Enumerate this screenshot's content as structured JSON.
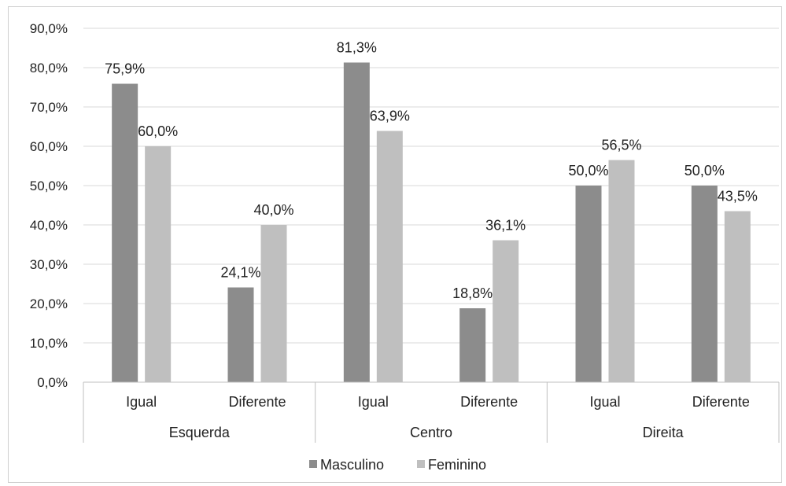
{
  "chart_data": {
    "type": "bar",
    "groups": [
      "Esquerda",
      "Centro",
      "Direita"
    ],
    "categories": [
      "Igual",
      "Diferente",
      "Igual",
      "Diferente",
      "Igual",
      "Diferente"
    ],
    "category_group": [
      0,
      0,
      1,
      1,
      2,
      2
    ],
    "series": [
      {
        "name": "Masculino",
        "color": "#8c8c8c",
        "values": [
          75.9,
          24.1,
          81.3,
          18.8,
          50.0,
          50.0
        ],
        "labels": [
          "75,9%",
          "24,1%",
          "81,3%",
          "18,8%",
          "50,0%",
          "50,0%"
        ]
      },
      {
        "name": "Feminino",
        "color": "#bfbfbf",
        "values": [
          60.0,
          40.0,
          63.9,
          36.1,
          56.5,
          43.5
        ],
        "labels": [
          "60,0%",
          "40,0%",
          "63,9%",
          "36,1%",
          "56,5%",
          "43,5%"
        ]
      }
    ],
    "y_ticks": [
      "0,0%",
      "10,0%",
      "20,0%",
      "30,0%",
      "40,0%",
      "50,0%",
      "60,0%",
      "70,0%",
      "80,0%",
      "90,0%"
    ],
    "ylim": [
      0,
      90
    ],
    "ytick_step": 10,
    "grid": true,
    "legend_position": "bottom"
  }
}
